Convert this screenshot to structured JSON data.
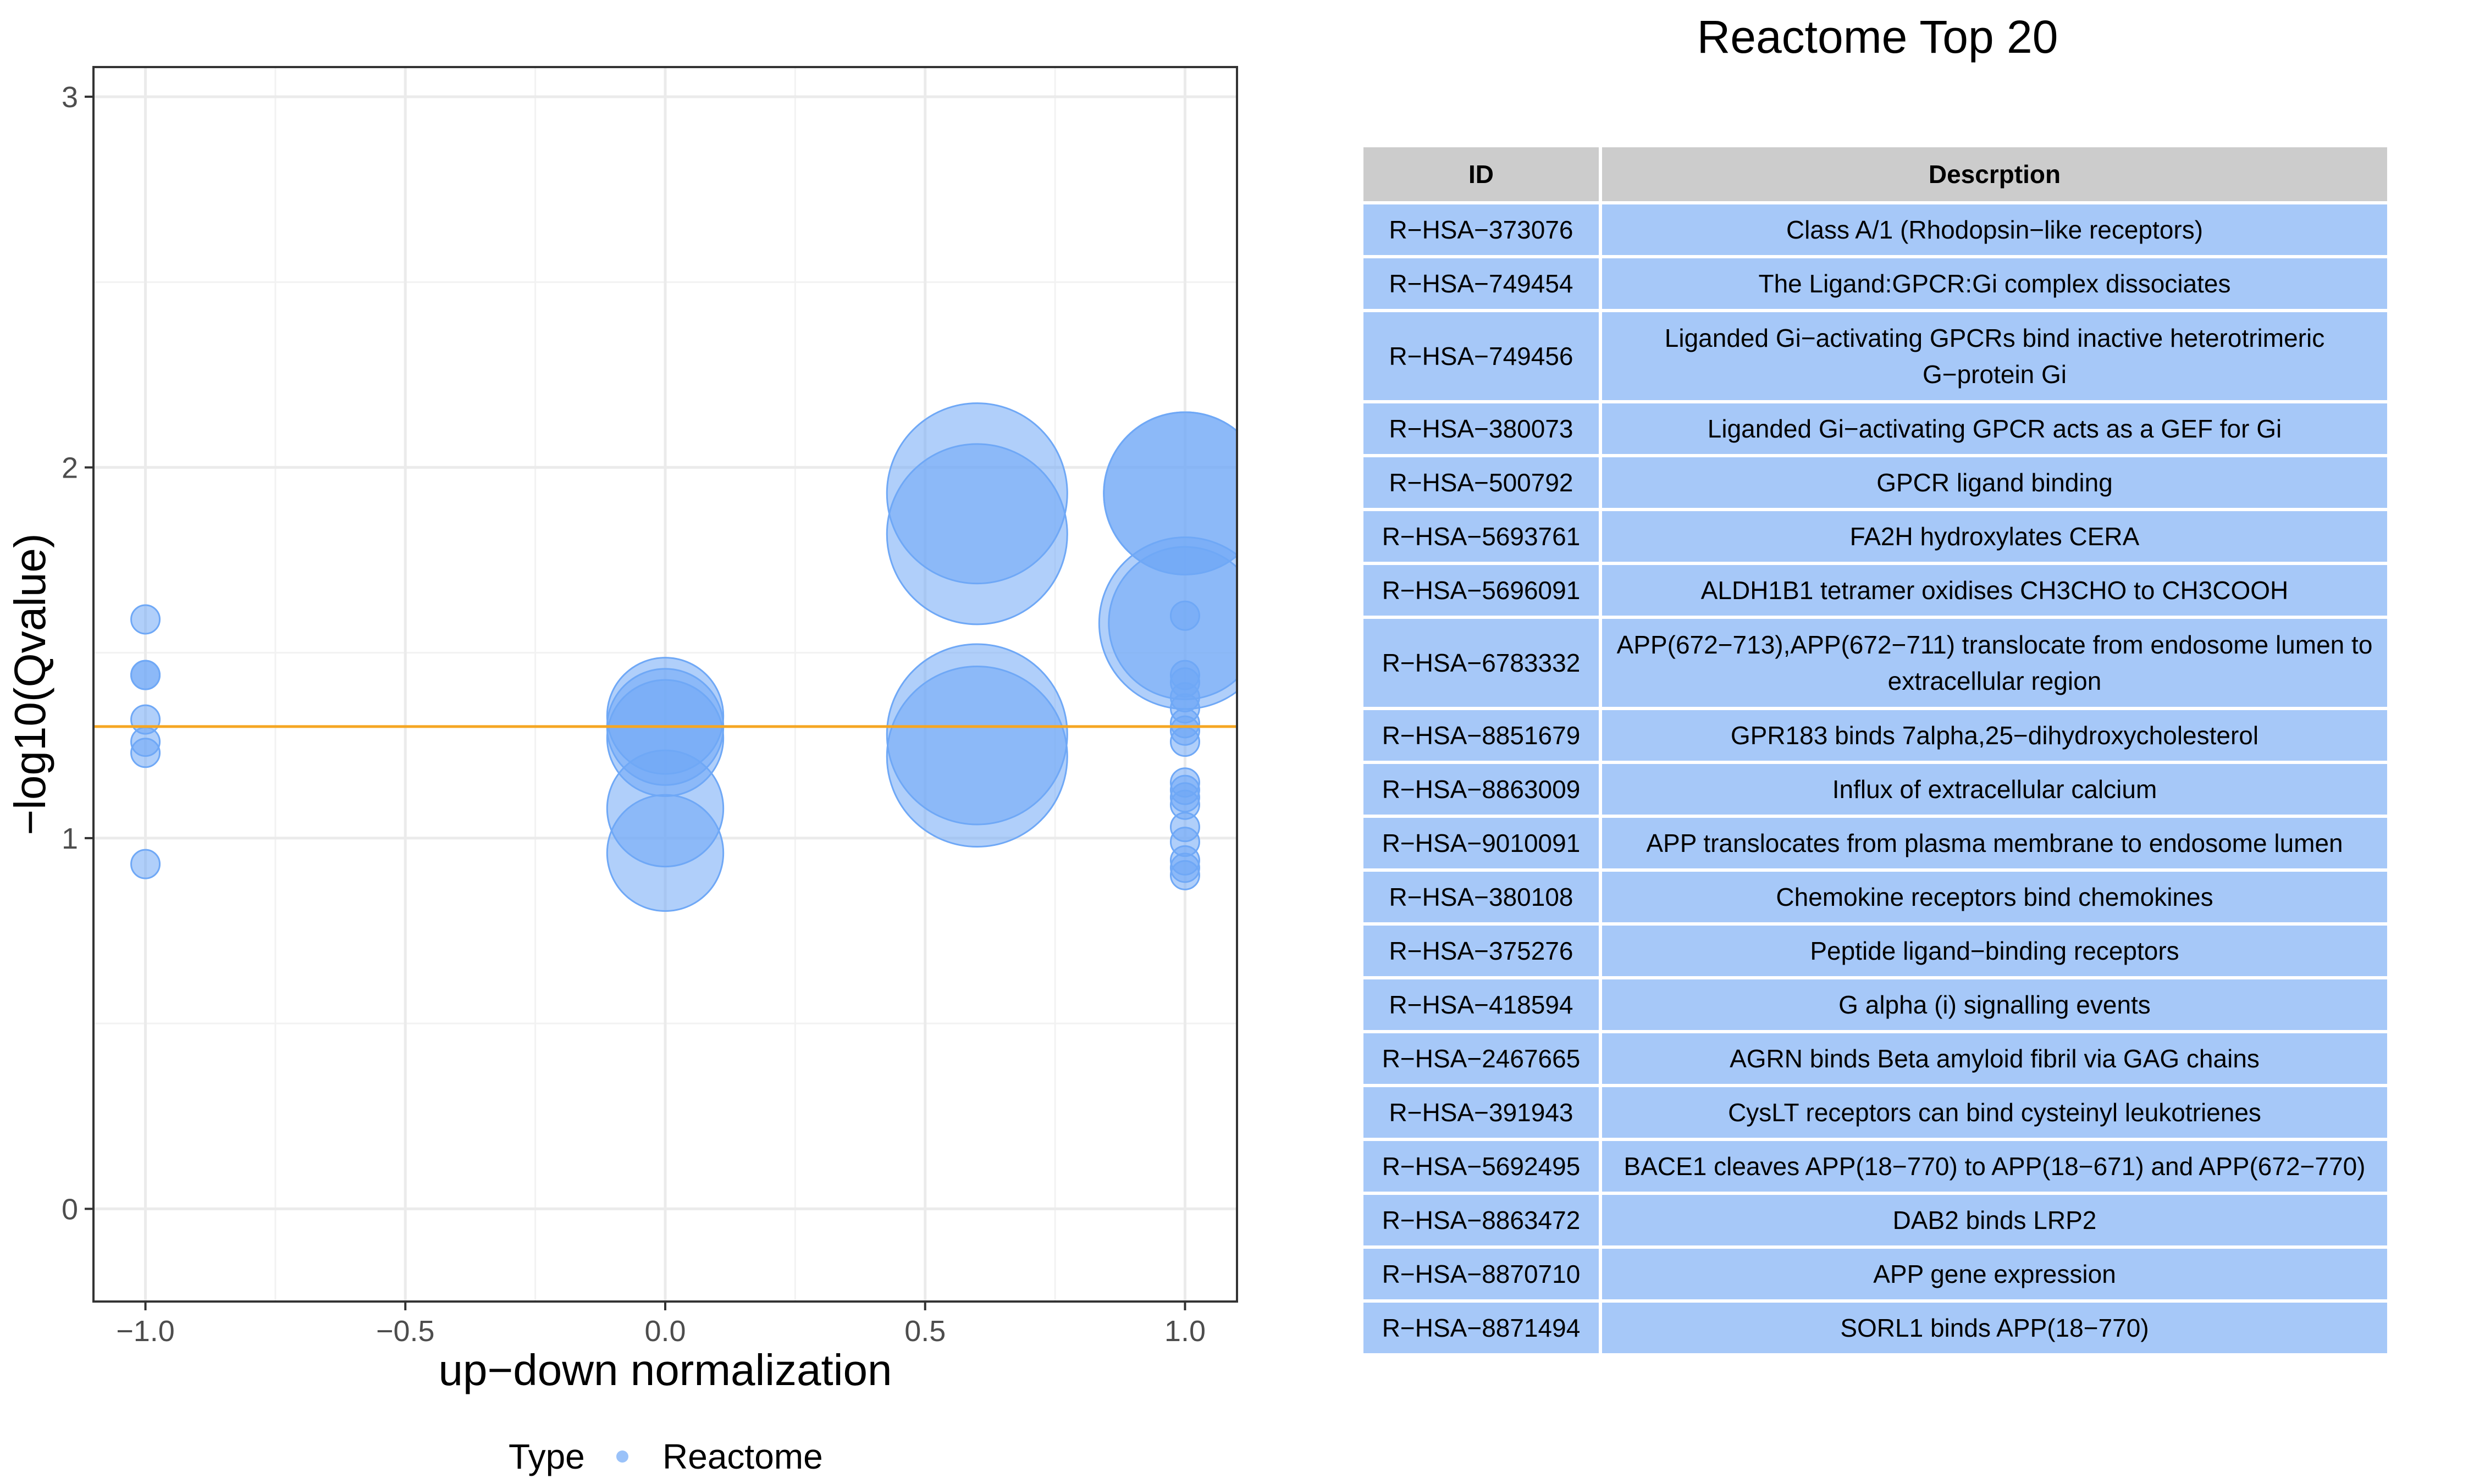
{
  "chart_data": [
    {
      "type": "scatter",
      "title": "",
      "xlabel": "up−down normalization",
      "ylabel": "−log10(Qvalue)",
      "xlim": [
        -1.1,
        1.1
      ],
      "ylim": [
        -0.25,
        3.08
      ],
      "x_ticks": [
        -1.0,
        -0.5,
        0.0,
        0.5,
        1.0
      ],
      "x_tick_labels": [
        "−1.0",
        "−0.5",
        "0.0",
        "0.5",
        "1.0"
      ],
      "y_ticks": [
        0,
        1,
        2,
        3
      ],
      "y_tick_labels": [
        "0",
        "1",
        "2",
        "3"
      ],
      "grid": true,
      "threshold_line": {
        "y": 1.301,
        "color": "#F5A623"
      },
      "point_color": "#6FA8F6",
      "legend": {
        "title": "Type",
        "entries": [
          "Reactome"
        ],
        "position": "bottom"
      },
      "series": [
        {
          "name": "Reactome",
          "points": [
            {
              "x": -1.0,
              "y": 1.59,
              "size": 1
            },
            {
              "x": -1.0,
              "y": 1.44,
              "size": 1
            },
            {
              "x": -1.0,
              "y": 1.44,
              "size": 1
            },
            {
              "x": -1.0,
              "y": 1.32,
              "size": 1
            },
            {
              "x": -1.0,
              "y": 1.26,
              "size": 1
            },
            {
              "x": -1.0,
              "y": 1.23,
              "size": 1
            },
            {
              "x": -1.0,
              "y": 0.93,
              "size": 1
            },
            {
              "x": 0.0,
              "y": 1.33,
              "size": 4
            },
            {
              "x": 0.0,
              "y": 1.3,
              "size": 4
            },
            {
              "x": 0.0,
              "y": 1.27,
              "size": 4
            },
            {
              "x": 0.0,
              "y": 1.08,
              "size": 4
            },
            {
              "x": 0.0,
              "y": 0.96,
              "size": 4
            },
            {
              "x": 0.6,
              "y": 1.93,
              "size": 10
            },
            {
              "x": 0.6,
              "y": 1.82,
              "size": 10
            },
            {
              "x": 0.6,
              "y": 1.28,
              "size": 10
            },
            {
              "x": 0.6,
              "y": 1.22,
              "size": 10
            },
            {
              "x": 1.0,
              "y": 1.93,
              "size": 8
            },
            {
              "x": 1.0,
              "y": 1.93,
              "size": 8
            },
            {
              "x": 1.0,
              "y": 1.58,
              "size": 9
            },
            {
              "x": 1.0,
              "y": 1.58,
              "size": 7
            },
            {
              "x": 1.0,
              "y": 1.6,
              "size": 1
            },
            {
              "x": 1.0,
              "y": 1.44,
              "size": 1
            },
            {
              "x": 1.0,
              "y": 1.42,
              "size": 1
            },
            {
              "x": 1.0,
              "y": 1.38,
              "size": 1
            },
            {
              "x": 1.0,
              "y": 1.35,
              "size": 1
            },
            {
              "x": 1.0,
              "y": 1.31,
              "size": 1
            },
            {
              "x": 1.0,
              "y": 1.29,
              "size": 1
            },
            {
              "x": 1.0,
              "y": 1.26,
              "size": 1
            },
            {
              "x": 1.0,
              "y": 1.15,
              "size": 1
            },
            {
              "x": 1.0,
              "y": 1.13,
              "size": 1
            },
            {
              "x": 1.0,
              "y": 1.11,
              "size": 1
            },
            {
              "x": 1.0,
              "y": 1.09,
              "size": 1
            },
            {
              "x": 1.0,
              "y": 1.03,
              "size": 1
            },
            {
              "x": 1.0,
              "y": 0.99,
              "size": 1
            },
            {
              "x": 1.0,
              "y": 0.94,
              "size": 1
            },
            {
              "x": 1.0,
              "y": 0.92,
              "size": 1
            },
            {
              "x": 1.0,
              "y": 0.9,
              "size": 1
            }
          ]
        }
      ]
    },
    {
      "type": "table",
      "title": "Reactome Top 20",
      "columns": [
        "ID",
        "Descrption"
      ],
      "rows": [
        [
          "R−HSA−373076",
          "Class A/1 (Rhodopsin−like receptors)"
        ],
        [
          "R−HSA−749454",
          "The Ligand:GPCR:Gi complex dissociates"
        ],
        [
          "R−HSA−749456",
          "Liganded Gi−activating GPCRs bind inactive heterotrimeric G−protein Gi"
        ],
        [
          "R−HSA−380073",
          "Liganded Gi−activating GPCR acts as a GEF for Gi"
        ],
        [
          "R−HSA−500792",
          "GPCR ligand binding"
        ],
        [
          "R−HSA−5693761",
          "FA2H hydroxylates CERA"
        ],
        [
          "R−HSA−5696091",
          "ALDH1B1 tetramer oxidises CH3CHO to CH3COOH"
        ],
        [
          "R−HSA−6783332",
          "APP(672−713),APP(672−711) translocate from endosome lumen to extracellular region"
        ],
        [
          "R−HSA−8851679",
          "GPR183 binds 7alpha,25−dihydroxycholesterol"
        ],
        [
          "R−HSA−8863009",
          "Influx of extracellular calcium"
        ],
        [
          "R−HSA−9010091",
          "APP translocates from plasma membrane to endosome lumen"
        ],
        [
          "R−HSA−380108",
          "Chemokine receptors bind chemokines"
        ],
        [
          "R−HSA−375276",
          "Peptide ligand−binding receptors"
        ],
        [
          "R−HSA−418594",
          "G alpha (i) signalling events"
        ],
        [
          "R−HSA−2467665",
          "AGRN binds Beta amyloid fibril via GAG chains"
        ],
        [
          "R−HSA−391943",
          "CysLT receptors can bind cysteinyl leukotrienes"
        ],
        [
          "R−HSA−5692495",
          "BACE1 cleaves APP(18−770) to APP(18−671) and APP(672−770)"
        ],
        [
          "R−HSA−8863472",
          "DAB2 binds LRP2"
        ],
        [
          "R−HSA−8870710",
          "APP gene expression"
        ],
        [
          "R−HSA−8871494",
          "SORL1 binds APP(18−770)"
        ]
      ]
    }
  ]
}
